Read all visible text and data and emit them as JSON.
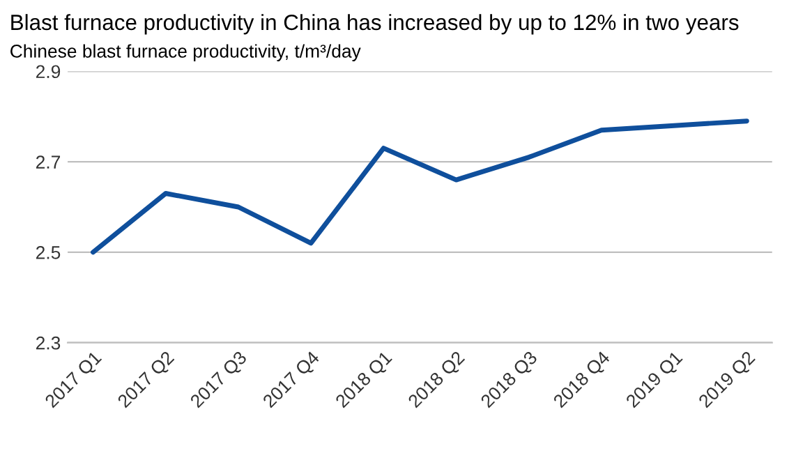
{
  "chart_data": {
    "type": "line",
    "title": "Blast furnace productivity in China has increased by up to 12% in two years",
    "subtitle": "Chinese blast furnace productivity, t/m³/day",
    "categories": [
      "2017 Q1",
      "2017 Q2",
      "2017 Q3",
      "2017 Q4",
      "2018 Q1",
      "2018 Q2",
      "2018 Q3",
      "2018 Q4",
      "2019 Q1",
      "2019 Q2"
    ],
    "series": [
      {
        "color": "#0f4f9c",
        "values": [
          2.5,
          2.63,
          2.6,
          2.52,
          2.73,
          2.66,
          2.71,
          2.77,
          2.78,
          2.79
        ]
      }
    ],
    "ylim": [
      2.3,
      2.9
    ],
    "yticks": [
      2.3,
      2.5,
      2.7,
      2.9
    ],
    "grid": "y",
    "legend": false,
    "marker": "none",
    "line_style": "solid"
  }
}
